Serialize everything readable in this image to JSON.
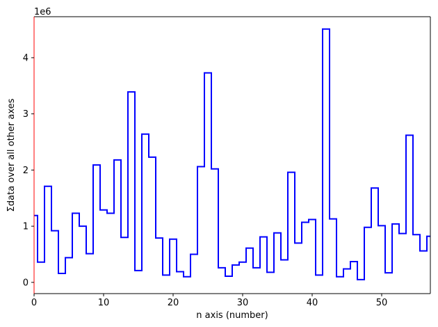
{
  "chart_data": {
    "type": "line",
    "drawstyle": "steps-mid",
    "xlabel": "n axis (number)",
    "ylabel": "Σdata over all other axes",
    "offset_label": "1e6",
    "xlim": [
      0,
      57
    ],
    "ylim": [
      -200000,
      4730000
    ],
    "xticks": [
      0,
      10,
      20,
      30,
      40,
      50
    ],
    "yticks": [
      0,
      1000000,
      2000000,
      3000000,
      4000000
    ],
    "ytick_labels": [
      "0",
      "1",
      "2",
      "3",
      "4"
    ],
    "grid": false,
    "line_color": "#0000ff",
    "left_spine_color": "#ff0000",
    "x": [
      0,
      1,
      2,
      3,
      4,
      5,
      6,
      7,
      8,
      9,
      10,
      11,
      12,
      13,
      14,
      15,
      16,
      17,
      18,
      19,
      20,
      21,
      22,
      23,
      24,
      25,
      26,
      27,
      28,
      29,
      30,
      31,
      32,
      33,
      34,
      35,
      36,
      37,
      38,
      39,
      40,
      41,
      42,
      43,
      44,
      45,
      46,
      47,
      48,
      49,
      50,
      51,
      52,
      53,
      54,
      55,
      56,
      57
    ],
    "values": [
      1190000,
      360000,
      1710000,
      920000,
      160000,
      440000,
      1230000,
      1000000,
      510000,
      2090000,
      1290000,
      1230000,
      2180000,
      800000,
      3390000,
      210000,
      2640000,
      2230000,
      790000,
      130000,
      770000,
      190000,
      100000,
      500000,
      2060000,
      3730000,
      2020000,
      260000,
      110000,
      310000,
      360000,
      610000,
      260000,
      810000,
      180000,
      880000,
      400000,
      1960000,
      700000,
      1070000,
      1120000,
      130000,
      4510000,
      1130000,
      100000,
      240000,
      370000,
      50000,
      980000,
      1680000,
      1010000,
      170000,
      1040000,
      870000,
      2620000,
      850000,
      560000,
      820000
    ]
  }
}
